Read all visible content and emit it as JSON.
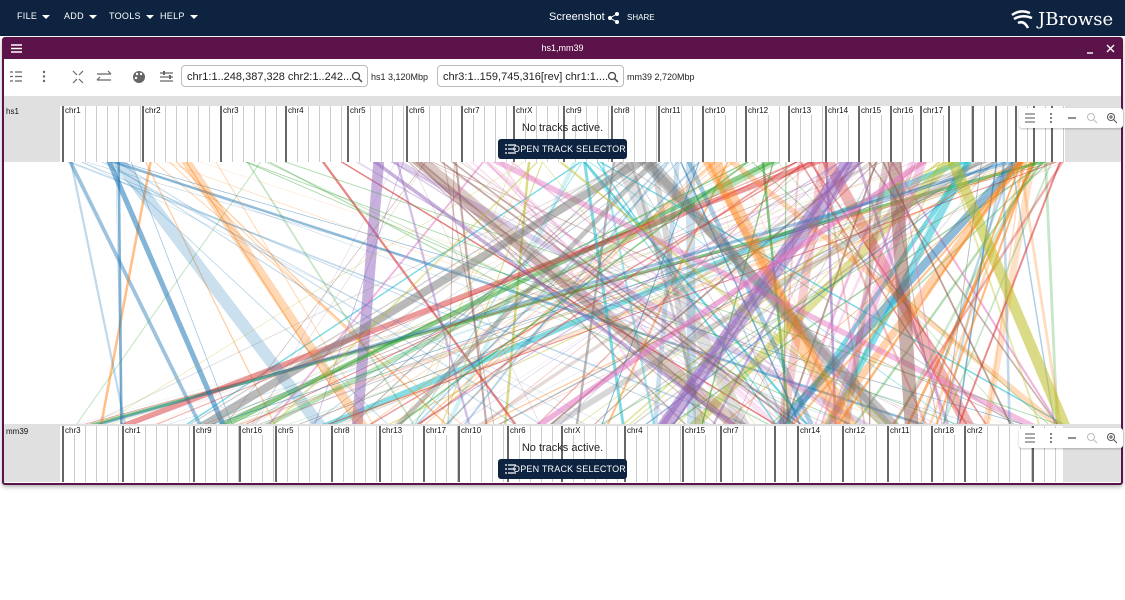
{
  "app_bar": {
    "menus": [
      "FILE",
      "ADD",
      "TOOLS",
      "HELP"
    ],
    "session_name": "Screenshot",
    "share": "SHARE",
    "logo": "JBrowse"
  },
  "view": {
    "title": "hs1,mm39",
    "top": {
      "location": "chr1:1..248,387,328 chr2:1..242...",
      "assembly_size": "hs1 3,120Mbp",
      "assembly": "hs1",
      "chromosomes": [
        "chr1",
        "chr2",
        "chr3",
        "chr4",
        "chr5",
        "chr6",
        "chr7",
        "chrX",
        "chr9",
        "chr8",
        "chr11",
        "chr10",
        "chr12",
        "chr13",
        "chr14",
        "chr15",
        "chr16",
        "chr17"
      ],
      "empty_message": "No tracks active.",
      "button": "OPEN TRACK SELECTOR"
    },
    "bottom": {
      "location": "chr3:1..159,745,316[rev] chr1:1....",
      "assembly_size": "mm39 2,720Mbp",
      "assembly": "mm39",
      "chromosomes": [
        "chr3",
        "chr1",
        "chr9",
        "chr16",
        "chr5",
        "chr8",
        "chr13",
        "chr17",
        "chr10",
        "chr6",
        "chrX",
        "chr4",
        "chr15",
        "chr7",
        "chr14",
        "chr12",
        "chr11",
        "chr18",
        "chr2"
      ],
      "empty_message": "No tracks active.",
      "button": "OPEN TRACK SELECTOR"
    }
  }
}
